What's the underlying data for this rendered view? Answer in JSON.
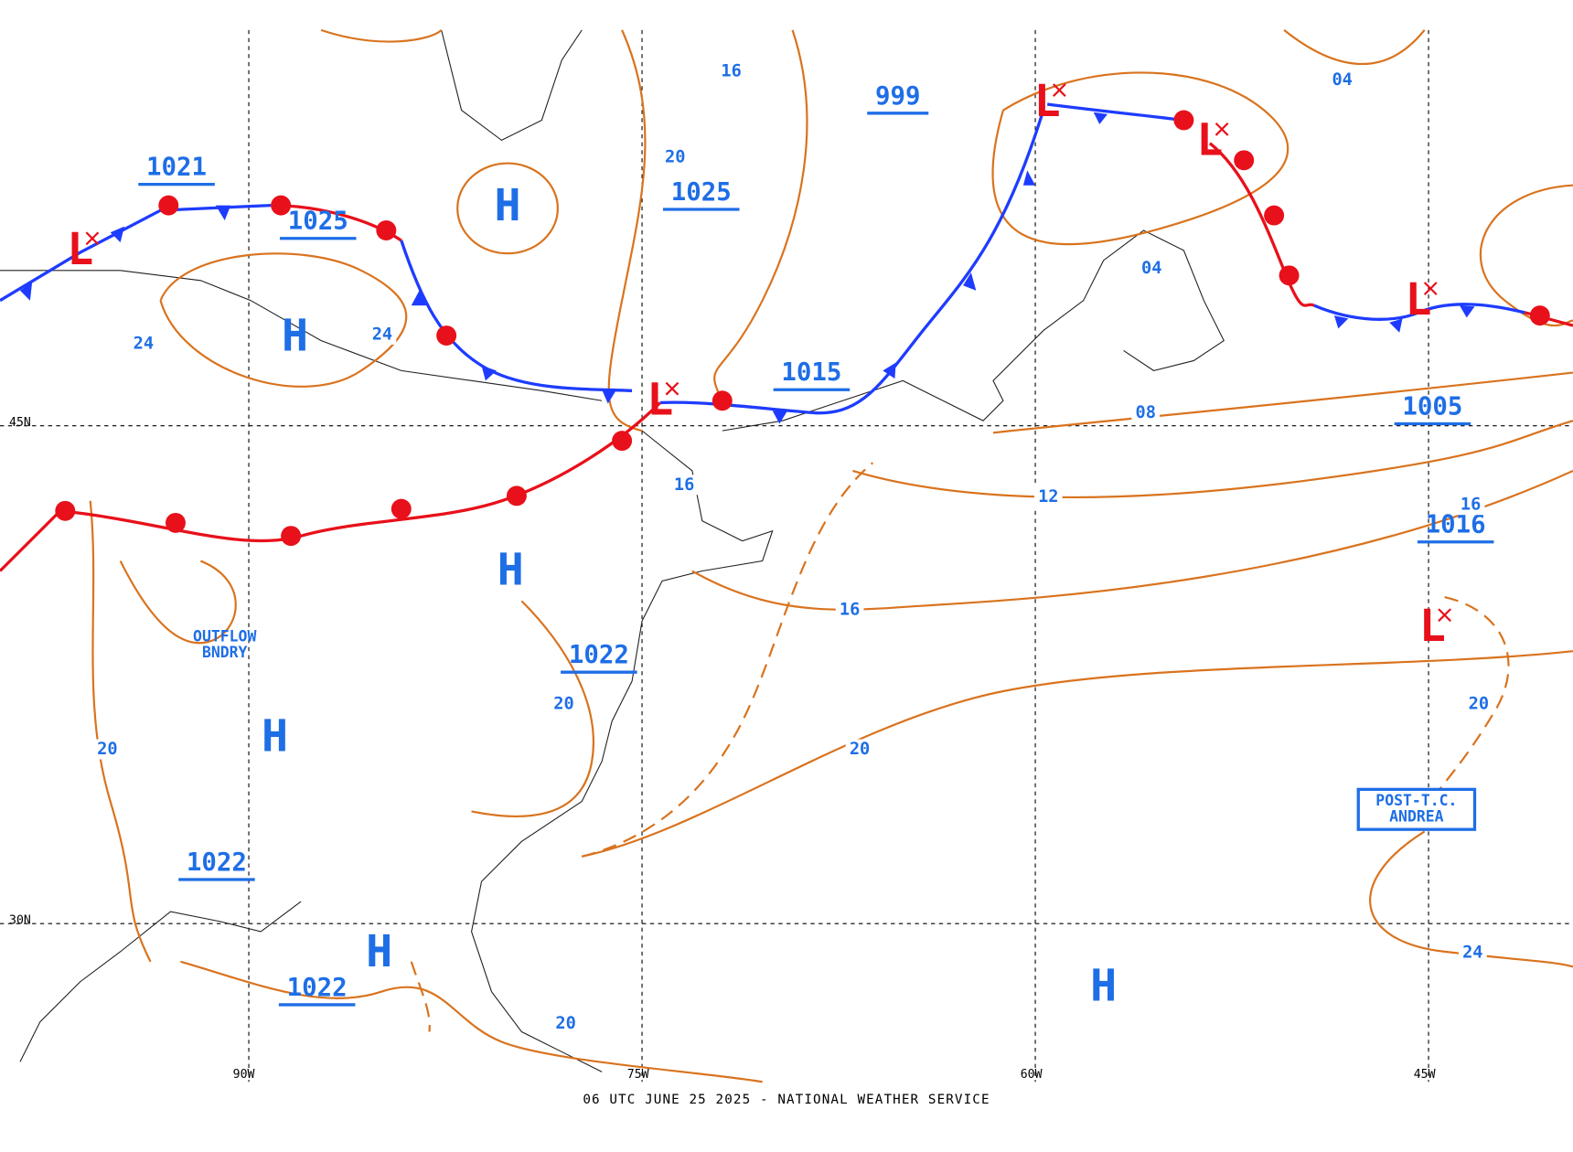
{
  "footer": "06 UTC JUNE 25 2025 - NATIONAL WEATHER SERVICE",
  "grid": {
    "latitudes": [
      "45N",
      "30N"
    ],
    "longitudes": [
      "90W",
      "75W",
      "60W",
      "45W"
    ]
  },
  "highs": [
    "H",
    "H",
    "H",
    "H",
    "H",
    "H"
  ],
  "lows": [
    "L",
    "L",
    "L",
    "L",
    "L",
    "L"
  ],
  "pressure_centers": [
    "1021",
    "1025",
    "1025",
    "999",
    "1015",
    "1005",
    "1016",
    "1022",
    "1022",
    "1022"
  ],
  "isobar_labels": [
    "16",
    "20",
    "24",
    "24",
    "20",
    "04",
    "04",
    "08",
    "12",
    "16",
    "16",
    "20",
    "20",
    "20",
    "24",
    "20",
    "16"
  ],
  "annotations": [
    {
      "lines": [
        "OUTFLOW",
        "BNDRY"
      ]
    },
    {
      "lines": [
        "POST-T.C.",
        "ANDREA"
      ]
    }
  ]
}
